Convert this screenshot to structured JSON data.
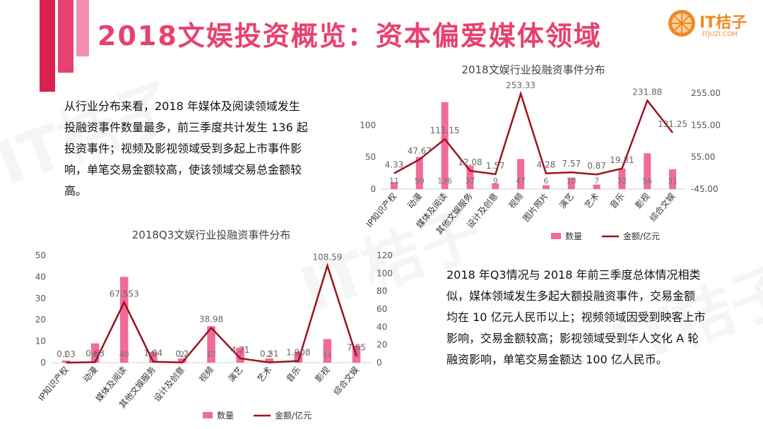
{
  "page": {
    "title": "2018文娱投资概览：资本偏爱媒体领域",
    "logo_text": "IT桔子",
    "logo_sub": "ITJUZI.COM",
    "watermark": "IT桔子",
    "colors": {
      "accent": "#e8416f",
      "bar": "#f06c98",
      "line": "#a0101e",
      "logo": "#f08a24"
    }
  },
  "text_top": {
    "lines": [
      "从行业分布来看，2018 年媒体及阅读领域发生",
      "投融资事件数量最多，前三季度共计发生 136 起",
      "投资事件；视频及影视领域受到多起上市事件影",
      "响，单笔交易金额较高，使该领域交易总金额较",
      "高。"
    ]
  },
  "text_bottom": {
    "lines": [
      "2018 年Q3情况与 2018 年前三季度总体情况相类",
      "似，媒体领域发生多起大额投融资事件，交易金额",
      "均在 10 亿元人民币以上；视频领域因受到映客上市",
      "影响，交易金额较高；影视领域受到华人文化 A 轮",
      "融资影响，单笔交易金额达 100 亿人民币。"
    ]
  },
  "chart_data": [
    {
      "type": "bar",
      "title": "2018文娱行业投融资事件分布",
      "categories": [
        "IP知识产权",
        "动漫",
        "媒体及阅读",
        "其他文娱服务",
        "设计及创意",
        "视频",
        "图片照片",
        "演艺",
        "艺术",
        "音乐",
        "影视",
        "综合文娱"
      ],
      "series": [
        {
          "name": "数量",
          "type": "bar",
          "axis": "left",
          "values": [
            11,
            50,
            136,
            37,
            9,
            47,
            6,
            18,
            7,
            32,
            56,
            31
          ],
          "labels": [
            "11",
            "50",
            "136",
            "37",
            "9",
            "47",
            "6",
            "18",
            "7",
            "32",
            "56",
            "31"
          ]
        },
        {
          "name": "金额/亿元",
          "type": "line",
          "axis": "right",
          "values": [
            4.33,
            47.67,
            111.15,
            12.08,
            1.57,
            253.33,
            4.28,
            7.57,
            0.87,
            19.31,
            231.88,
            131.25
          ],
          "labels": [
            "4.33",
            "47.67",
            "111.15",
            "12.08",
            "1.57",
            "253.33",
            "4.28",
            "7.57",
            "0.87",
            "19.31",
            "231.88",
            "131.25"
          ]
        }
      ],
      "left_axis": {
        "ylim": [
          0,
          150
        ],
        "ticks": [
          "0",
          "50",
          "100"
        ],
        "tick_values": [
          0,
          50,
          100
        ]
      },
      "right_axis": {
        "ylim": [
          -45,
          255
        ],
        "ticks": [
          "-45.00",
          "55.00",
          "155.00",
          "255.00"
        ],
        "tick_values": [
          -45,
          55,
          155,
          255
        ]
      },
      "legend": [
        "数量",
        "金额/亿元"
      ],
      "legend_position": "bottom-right"
    },
    {
      "type": "bar",
      "title": "2018Q3文娱行业投融资事件分布",
      "categories": [
        "IP知识产权",
        "动漫",
        "媒体及阅读",
        "其他文娱服务",
        "设计及创意",
        "视频",
        "演艺",
        "艺术",
        "音乐",
        "影视",
        "综合文娱"
      ],
      "series": [
        {
          "name": "数量",
          "type": "bar",
          "axis": "left",
          "values": [
            1,
            9,
            40,
            5,
            2,
            17,
            7,
            2,
            5,
            11,
            8
          ],
          "labels": [
            "1",
            "9",
            "40",
            "5",
            "2",
            "17",
            "7",
            "2",
            "5",
            "11",
            "8"
          ]
        },
        {
          "name": "金额/亿元",
          "type": "line",
          "axis": "right",
          "values": [
            0.03,
            0.63,
            67.553,
            1.04,
            0.2,
            38.98,
            4.71,
            0.31,
            1.908,
            108.59,
            7.65
          ],
          "labels": [
            "0.03",
            "0.63",
            "67.553",
            "1.04",
            "0.2",
            "38.98",
            "4.71",
            "0.31",
            "1.908",
            "108.59",
            "7.65"
          ]
        }
      ],
      "left_axis": {
        "ylim": [
          0,
          50
        ],
        "ticks": [
          "0",
          "10",
          "20",
          "30",
          "40",
          "50"
        ],
        "tick_values": [
          0,
          10,
          20,
          30,
          40,
          50
        ]
      },
      "right_axis": {
        "ylim": [
          0,
          120
        ],
        "ticks": [
          "0",
          "20",
          "40",
          "60",
          "80",
          "100",
          "120"
        ],
        "tick_values": [
          0,
          20,
          40,
          60,
          80,
          100,
          120
        ]
      },
      "legend": [
        "数量",
        "金额/亿元"
      ],
      "legend_position": "bottom"
    }
  ]
}
